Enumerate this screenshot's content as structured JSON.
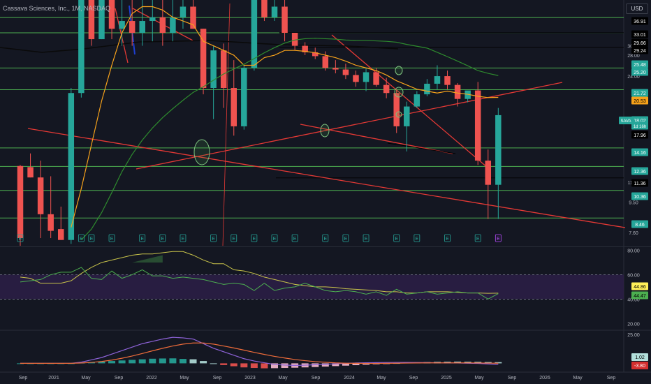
{
  "header": {
    "title": "Cassava Sciences, Inc., 1M, NASDAQ",
    "currency": "USD"
  },
  "colors": {
    "bg": "#141722",
    "up": "#26a69a",
    "down": "#ef5350",
    "level": "#4caf50",
    "trend": "#e53935",
    "ema_fast": "#f7a21b",
    "ema_slow": "#2e8b2e",
    "ma_black": "#0a0a0a",
    "rsi": "#c9c44a",
    "rsi_ma": "#4caf50",
    "rsi_band": "#2b1f47",
    "macd": "#8e63d9",
    "signal": "#ef6c3a",
    "hist_up": "#b2dfdb",
    "hist_down": "#f8bbd0"
  },
  "chart_data": [
    {
      "type": "candlestick",
      "id": "price",
      "symbol": "SAVA",
      "timeframe": "1M",
      "y_scale": "log",
      "ylim": [
        6.9,
        42
      ],
      "x_tick_labels": [
        "Sep",
        "2021",
        "May",
        "Sep",
        "2022",
        "May",
        "Sep",
        "2023",
        "May",
        "Sep",
        "2024",
        "May",
        "Sep",
        "2025",
        "May",
        "Sep",
        "2026",
        "May",
        "Sep"
      ],
      "candles": [
        {
          "o": 12.4,
          "h": 12.5,
          "l": 6.9,
          "c": 7.3
        },
        {
          "o": 12.3,
          "h": 13.6,
          "l": 11.4,
          "c": 11.4
        },
        {
          "o": 11.4,
          "h": 12.9,
          "l": 7.3,
          "c": 8.7
        },
        {
          "o": 8.7,
          "h": 11.5,
          "l": 7.3,
          "c": 7.7
        },
        {
          "o": 7.8,
          "h": 9.2,
          "l": 7.2,
          "c": 7.2
        },
        {
          "o": 7.2,
          "h": 22,
          "l": 7.0,
          "c": 21.2
        },
        {
          "o": 21.2,
          "h": 42,
          "l": 20.5,
          "c": 42
        },
        {
          "o": 42,
          "h": 42,
          "l": 30,
          "c": 31.5
        },
        {
          "o": 31.5,
          "h": 42,
          "l": 31.5,
          "c": 42
        },
        {
          "o": 42,
          "h": 42,
          "l": 31.5,
          "c": 34
        },
        {
          "o": 34,
          "h": 42,
          "l": 30,
          "c": 36
        },
        {
          "o": 36,
          "h": 42,
          "l": 30,
          "c": 33
        },
        {
          "o": 33,
          "h": 42,
          "l": 30,
          "c": 36
        },
        {
          "o": 36,
          "h": 42,
          "l": 31,
          "c": 37
        },
        {
          "o": 37,
          "h": 42,
          "l": 30,
          "c": 33
        },
        {
          "o": 33,
          "h": 42,
          "l": 31,
          "c": 37
        },
        {
          "o": 37,
          "h": 42,
          "l": 34,
          "c": 40
        },
        {
          "o": 40,
          "h": 42,
          "l": 34,
          "c": 34
        },
        {
          "o": 34,
          "h": 34,
          "l": 21,
          "c": 22
        },
        {
          "o": 22,
          "h": 30,
          "l": 17.5,
          "c": 29
        },
        {
          "o": 29,
          "h": 30.5,
          "l": 19,
          "c": 22
        },
        {
          "o": 22,
          "h": 27,
          "l": 15.5,
          "c": 16.6
        },
        {
          "o": 16.6,
          "h": 26,
          "l": 16.2,
          "c": 25.5
        },
        {
          "o": 25.5,
          "h": 42,
          "l": 25,
          "c": 42
        },
        {
          "o": 42,
          "h": 42,
          "l": 36,
          "c": 37
        },
        {
          "o": 37,
          "h": 42,
          "l": 36,
          "c": 40
        },
        {
          "o": 40,
          "h": 42,
          "l": 31,
          "c": 33
        },
        {
          "o": 33,
          "h": 33,
          "l": 29,
          "c": 30
        },
        {
          "o": 30,
          "h": 30.8,
          "l": 28,
          "c": 28.6
        },
        {
          "o": 28.6,
          "h": 29.6,
          "l": 27.2,
          "c": 27.8
        },
        {
          "o": 27.8,
          "h": 28.8,
          "l": 25,
          "c": 25.5
        },
        {
          "o": 25.5,
          "h": 27,
          "l": 24.5,
          "c": 25.2
        },
        {
          "o": 25.2,
          "h": 26.3,
          "l": 23.5,
          "c": 24.2
        },
        {
          "o": 24.2,
          "h": 25,
          "l": 22.2,
          "c": 23
        },
        {
          "o": 23,
          "h": 25.5,
          "l": 21.5,
          "c": 24.7
        },
        {
          "o": 24.7,
          "h": 25.5,
          "l": 22.2,
          "c": 22.5
        },
        {
          "o": 22.5,
          "h": 23.7,
          "l": 20.4,
          "c": 21.2
        },
        {
          "o": 21.2,
          "h": 21.8,
          "l": 15.8,
          "c": 16.6
        },
        {
          "o": 16.6,
          "h": 19.9,
          "l": 13.8,
          "c": 19.2
        },
        {
          "o": 19.2,
          "h": 21.5,
          "l": 19,
          "c": 21
        },
        {
          "o": 21,
          "h": 23.5,
          "l": 20.7,
          "c": 22.7
        },
        {
          "o": 22.7,
          "h": 26,
          "l": 21.8,
          "c": 24
        },
        {
          "o": 24,
          "h": 25,
          "l": 21.8,
          "c": 22.5
        },
        {
          "o": 22.5,
          "h": 22.8,
          "l": 19.2,
          "c": 20.3
        },
        {
          "o": 20.3,
          "h": 21.5,
          "l": 19.8,
          "c": 21.6
        },
        {
          "o": 21.6,
          "h": 23,
          "l": 12.5,
          "c": 12.9
        },
        {
          "o": 12.9,
          "h": 14,
          "l": 8.4,
          "c": 10.8
        },
        {
          "o": 10.8,
          "h": 19,
          "l": 8.4,
          "c": 18.02
        }
      ],
      "ema_fast": [
        null,
        null,
        null,
        null,
        null,
        7.9,
        10.5,
        14.5,
        20,
        26,
        33,
        38,
        40,
        40,
        39,
        37,
        36,
        35,
        31,
        30,
        29,
        28,
        26,
        26,
        27.5,
        28,
        29,
        29,
        28.8,
        28.5,
        28,
        27.5,
        26.8,
        26,
        25.5,
        25,
        24.2,
        23.2,
        22.5,
        21.8,
        21.5,
        21.2,
        21.5,
        21.2,
        21,
        20.7,
        20.5,
        20.53
      ],
      "ema_slow": [
        null,
        null,
        null,
        null,
        null,
        null,
        7.2,
        7.8,
        8.8,
        10.2,
        11.9,
        13.5,
        15,
        16.4,
        17.7,
        18.9,
        20.1,
        21.3,
        22.2,
        23.3,
        24.4,
        25.3,
        26.2,
        27.3,
        28.5,
        29.6,
        30.6,
        31.3,
        31.6,
        31.7,
        31.6,
        31.5,
        31.3,
        31.2,
        31.2,
        31.1,
        31,
        30.8,
        30.3,
        29.9,
        29.5,
        28.6,
        27.7,
        26.8,
        25.9,
        25,
        24.5,
        24.1
      ],
      "levels": [
        36.91,
        33.01,
        25.48,
        21.72,
        14.16,
        12.36,
        10.36,
        8.46
      ],
      "price_labels": [
        {
          "text": "36.91",
          "kind": "line"
        },
        {
          "text": "33.01",
          "kind": "line"
        },
        {
          "text": "29.66",
          "kind": "line"
        },
        {
          "text": "29.24",
          "kind": "line"
        },
        {
          "text": "25.48",
          "kind": "level"
        },
        {
          "text": "25.20",
          "kind": "level"
        },
        {
          "text": "21.72",
          "kind": "level"
        },
        {
          "text": "20.53",
          "kind": "ema"
        },
        {
          "text": "SAVA",
          "kind": "symbol"
        },
        {
          "text": "18.02",
          "kind": "last"
        },
        {
          "text": "1d 16h",
          "kind": "countdown"
        },
        {
          "text": "17.96",
          "kind": "line"
        },
        {
          "text": "14.16",
          "kind": "level"
        },
        {
          "text": "12.36",
          "kind": "level"
        },
        {
          "text": "11.36",
          "kind": "line"
        },
        {
          "text": "10.36",
          "kind": "level"
        },
        {
          "text": "8.46",
          "kind": "level"
        }
      ],
      "axis_ticks": [
        "30.00",
        "28.00",
        "24.00",
        "11.00",
        "9.50",
        "7.60"
      ],
      "earnings_marker": "E"
    },
    {
      "type": "line",
      "id": "rsi",
      "ylim": [
        15,
        82
      ],
      "bands": [
        40,
        60
      ],
      "axis_ticks": [
        "80.00",
        "60.00",
        "40.00",
        "20.00"
      ],
      "value_labels": [
        "44.86",
        "44.47"
      ],
      "rsi": [
        58,
        57,
        53,
        53,
        53,
        55,
        61,
        66,
        70,
        72,
        74,
        76,
        77,
        77,
        78,
        79,
        79,
        76,
        72,
        69,
        69,
        64,
        63,
        61,
        58,
        56,
        54,
        52,
        51,
        50,
        50,
        49.5,
        48.5,
        48,
        47.5,
        47,
        46,
        46,
        45,
        45,
        46,
        46,
        46,
        45.5,
        45,
        45,
        44.7,
        44.86
      ],
      "rsi_ma": [
        54,
        55,
        56,
        60,
        62,
        62,
        66,
        57,
        56,
        63,
        57,
        60,
        64,
        59,
        59,
        57,
        58,
        57,
        56,
        54,
        52,
        53,
        52,
        47,
        53,
        47,
        49,
        50,
        53,
        50,
        47,
        46,
        47,
        46,
        44,
        46,
        43,
        48,
        44,
        45,
        46,
        44,
        45,
        46,
        45,
        45,
        40,
        44.47
      ]
    },
    {
      "type": "bar",
      "id": "macd",
      "ylim": [
        -7,
        28
      ],
      "axis_ticks": [
        "25.00"
      ],
      "value_labels": [
        "1.02",
        "-3.80"
      ],
      "hist": [
        0,
        0,
        0,
        0,
        0,
        0,
        0.5,
        1,
        1.5,
        2,
        2.5,
        3,
        3.5,
        4,
        4.2,
        4.3,
        3.8,
        3.5,
        2,
        0,
        -1.5,
        -2.5,
        -3.5,
        -4,
        -4.3,
        -4.2,
        -4,
        -3.8,
        -3.5,
        -3.2,
        -2.8,
        -2.4,
        -2,
        -1.6,
        -1.2,
        -0.8,
        -0.3,
        0.2,
        0.6,
        0.9,
        1.1,
        1.3,
        1.4,
        1.5,
        1.4,
        1.3,
        1.1,
        1.02
      ],
      "macd": [
        0,
        0,
        0,
        0,
        0,
        0,
        1,
        3,
        5,
        8,
        11,
        14,
        17,
        19,
        21,
        22.5,
        22,
        21,
        17,
        13,
        10,
        7,
        4,
        2,
        0.5,
        -1,
        -1.5,
        -1.8,
        -1.6,
        -1.2,
        -0.8,
        -0.4,
        0,
        0.3,
        0.5,
        0.6,
        0.7,
        0.8,
        0.8,
        0.7,
        0.6,
        0.5,
        0.4,
        0.3,
        0.1,
        -0.1,
        -0.5,
        -0.9
      ],
      "signal": [
        0,
        0,
        0,
        0,
        0,
        0,
        0.3,
        0.8,
        1.6,
        2.8,
        4.4,
        6.3,
        8.5,
        10.8,
        13,
        15,
        16.6,
        17.6,
        17.6,
        16.6,
        15,
        13.3,
        11.4,
        9.5,
        7.7,
        6,
        4.6,
        3.3,
        2.3,
        1.5,
        0.9,
        0.4,
        0.1,
        0,
        -0.1,
        -0.1,
        0,
        0.1,
        0.2,
        0.3,
        0.4,
        0.4,
        0.4,
        0.4,
        0.4,
        0.3,
        0.2,
        0.1
      ]
    }
  ]
}
